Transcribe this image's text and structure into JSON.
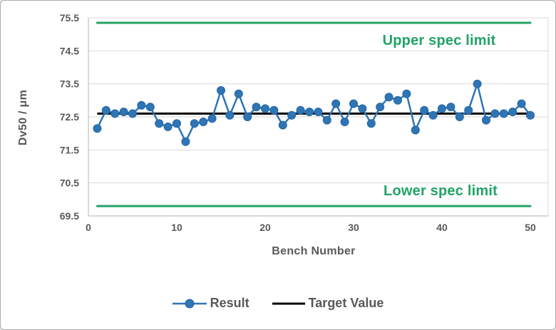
{
  "window": {
    "background": "#FFFFFF",
    "border_color": "#ABABAB"
  },
  "chart_data": {
    "type": "line",
    "title": "",
    "xlabel": "Bench Number",
    "ylabel": "Dv50 / μm",
    "xlim": [
      0,
      50
    ],
    "ylim": [
      69.5,
      75.5
    ],
    "x_ticks": [
      0,
      10,
      20,
      30,
      40,
      50
    ],
    "y_ticks": [
      69.5,
      70.5,
      71.5,
      72.5,
      73.5,
      74.5,
      75.5
    ],
    "grid": "horizontal",
    "legend_position": "bottom",
    "bench_numbers": {
      "first": 1,
      "last": 50
    },
    "series": [
      {
        "name": "Result",
        "type": "line+marker",
        "marker": "circle",
        "color": "#2E75B6",
        "marker_edge_color": "#2565A2",
        "values": [
          72.15,
          72.7,
          72.6,
          72.65,
          72.6,
          72.85,
          72.8,
          72.3,
          72.2,
          72.3,
          71.75,
          72.3,
          72.35,
          72.45,
          73.3,
          72.55,
          73.2,
          72.5,
          72.8,
          72.75,
          72.7,
          72.25,
          72.55,
          72.7,
          72.65,
          72.65,
          72.4,
          72.9,
          72.35,
          72.9,
          72.75,
          72.3,
          72.8,
          73.1,
          73.0,
          73.2,
          72.1,
          72.7,
          72.55,
          72.75,
          72.8,
          72.5,
          72.7,
          73.5,
          72.4,
          72.6,
          72.6,
          72.65,
          72.9,
          72.55
        ]
      },
      {
        "name": "Target Value",
        "type": "hline",
        "color": "#000000",
        "value": 72.6
      }
    ],
    "reference_lines": [
      {
        "label": "Upper spec limit",
        "value": 75.35,
        "color": "#21A366"
      },
      {
        "label": "Lower spec limit",
        "value": 69.8,
        "color": "#21A366"
      }
    ]
  },
  "styles": {
    "tick_text_color": "#595959",
    "axis_title_color": "#595959",
    "legend_text_color": "#595959",
    "gridline_color": "#D9D9D9",
    "axis_line_color": "#BFBFBF",
    "result_blue": "#2E75B6",
    "spec_green": "#21A366",
    "target_black": "#000000"
  }
}
